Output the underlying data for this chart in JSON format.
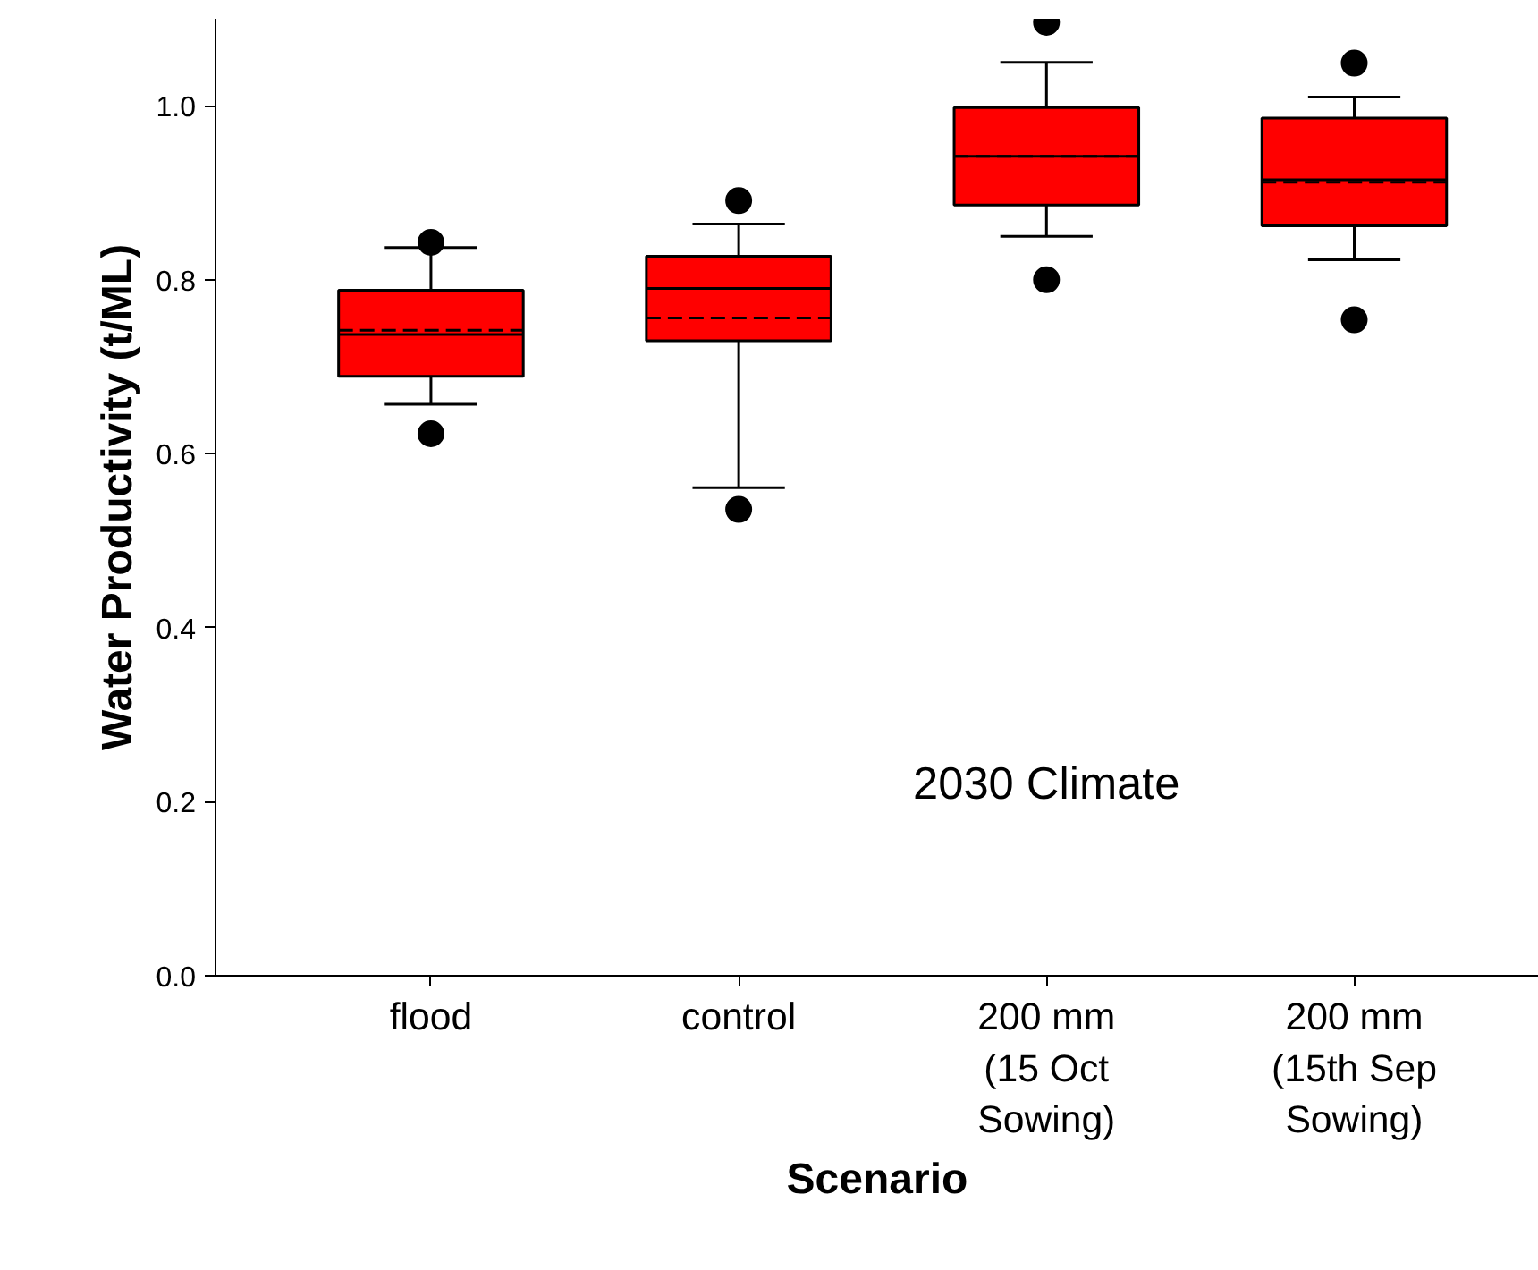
{
  "chart_data": {
    "type": "box",
    "xlabel": "Scenario",
    "ylabel": "Water Productivity (t/ML)",
    "categories": [
      "flood",
      "control",
      "200 mm (15 Oct Sowing)",
      "200 mm (15th Sep Sowing)"
    ],
    "color": "#ff0000",
    "boxes": [
      {
        "low": 0.657,
        "q1": 0.689,
        "median": 0.737,
        "q3": 0.788,
        "high": 0.837,
        "mean": 0.742,
        "outliers": [
          0.843,
          0.623
        ]
      },
      {
        "low": 0.561,
        "q1": 0.73,
        "median": 0.79,
        "q3": 0.827,
        "high": 0.864,
        "mean": 0.756,
        "outliers": [
          0.891,
          0.536
        ]
      },
      {
        "low": 0.85,
        "q1": 0.886,
        "median": 0.942,
        "q3": 0.998,
        "high": 1.05,
        "mean": 0.942,
        "outliers": [
          1.096,
          0.8
        ]
      },
      {
        "low": 0.823,
        "q1": 0.862,
        "median": 0.915,
        "q3": 0.986,
        "high": 1.01,
        "mean": 0.912,
        "outliers": [
          1.049,
          0.754
        ]
      }
    ],
    "ylim": [
      0,
      1.1
    ],
    "yticks": [
      {
        "value": 0,
        "label": "0.0"
      },
      0.2,
      0.4,
      0.6,
      0.8,
      {
        "value": 1,
        "label": "1.0"
      }
    ],
    "annotations": [
      "2030 Climate"
    ],
    "grid": false
  }
}
